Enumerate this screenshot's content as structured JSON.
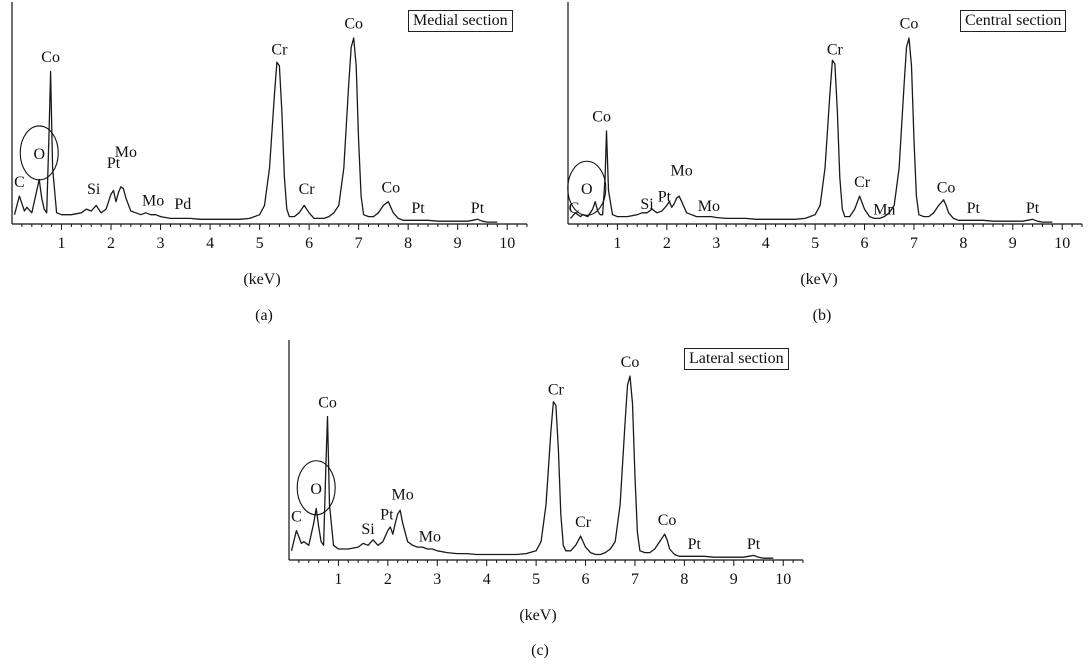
{
  "chart_data": [
    {
      "type": "line",
      "panel": "(a)",
      "title": "Medial section",
      "xlabel": "(keV)",
      "xlim": [
        0,
        10.4
      ],
      "xticks": [
        1,
        2,
        3,
        4,
        5,
        6,
        7,
        8,
        9,
        10
      ],
      "ytick_labels": "none",
      "circled_label": "O",
      "series": [
        {
          "x": [
            0.05,
            0.15,
            0.25,
            0.3,
            0.4,
            0.5,
            0.55,
            0.6,
            0.65,
            0.7,
            0.75,
            0.78,
            0.82,
            0.9,
            1.0,
            1.2,
            1.4,
            1.5,
            1.6,
            1.7,
            1.8,
            1.9,
            2.0,
            2.05,
            2.1,
            2.15,
            2.2,
            2.25,
            2.3,
            2.4,
            2.5,
            2.6,
            2.7,
            2.8,
            2.9,
            3.0,
            3.2,
            3.4,
            3.6,
            3.8,
            4.0,
            4.2,
            4.4,
            4.6,
            4.8,
            5.0,
            5.1,
            5.2,
            5.3,
            5.35,
            5.4,
            5.45,
            5.5,
            5.55,
            5.6,
            5.7,
            5.8,
            5.9,
            6.0,
            6.1,
            6.2,
            6.3,
            6.4,
            6.5,
            6.6,
            6.7,
            6.8,
            6.85,
            6.9,
            6.95,
            7.0,
            7.05,
            7.1,
            7.2,
            7.3,
            7.4,
            7.5,
            7.6,
            7.65,
            7.7,
            7.8,
            7.9,
            8.0,
            8.2,
            8.4,
            8.6,
            8.8,
            9.0,
            9.2,
            9.3,
            9.4,
            9.5,
            9.6,
            9.8
          ],
          "y": [
            0.05,
            0.15,
            0.07,
            0.09,
            0.06,
            0.18,
            0.24,
            0.14,
            0.08,
            0.06,
            0.5,
            0.82,
            0.3,
            0.06,
            0.05,
            0.05,
            0.06,
            0.08,
            0.07,
            0.1,
            0.06,
            0.08,
            0.16,
            0.18,
            0.12,
            0.17,
            0.2,
            0.19,
            0.14,
            0.07,
            0.06,
            0.05,
            0.06,
            0.05,
            0.05,
            0.04,
            0.03,
            0.03,
            0.03,
            0.025,
            0.025,
            0.025,
            0.025,
            0.025,
            0.03,
            0.05,
            0.1,
            0.3,
            0.7,
            0.87,
            0.85,
            0.6,
            0.25,
            0.08,
            0.04,
            0.04,
            0.06,
            0.1,
            0.06,
            0.03,
            0.03,
            0.03,
            0.04,
            0.06,
            0.1,
            0.3,
            0.75,
            0.95,
            1.0,
            0.85,
            0.45,
            0.15,
            0.05,
            0.04,
            0.04,
            0.06,
            0.1,
            0.12,
            0.09,
            0.06,
            0.03,
            0.02,
            0.02,
            0.02,
            0.02,
            0.015,
            0.015,
            0.015,
            0.015,
            0.02,
            0.025,
            0.015,
            0.01,
            0.01
          ]
        }
      ],
      "annotations": [
        {
          "label": "C",
          "x": 0.15,
          "y": 0.2
        },
        {
          "label": "O",
          "x": 0.55,
          "y": 0.35
        },
        {
          "label": "Co",
          "x": 0.78,
          "y": 0.87
        },
        {
          "label": "Si",
          "x": 1.65,
          "y": 0.16
        },
        {
          "label": "Pt",
          "x": 2.05,
          "y": 0.3
        },
        {
          "label": "Mo",
          "x": 2.3,
          "y": 0.36
        },
        {
          "label": "Mo",
          "x": 2.85,
          "y": 0.1
        },
        {
          "label": "Pd",
          "x": 3.45,
          "y": 0.08
        },
        {
          "label": "Cr",
          "x": 5.4,
          "y": 0.91
        },
        {
          "label": "Cr",
          "x": 5.95,
          "y": 0.16
        },
        {
          "label": "Co",
          "x": 6.9,
          "y": 1.05
        },
        {
          "label": "Co",
          "x": 7.65,
          "y": 0.17
        },
        {
          "label": "Pt",
          "x": 8.2,
          "y": 0.06
        },
        {
          "label": "Pt",
          "x": 9.4,
          "y": 0.06
        }
      ]
    },
    {
      "type": "line",
      "panel": "(b)",
      "title": "Central section",
      "xlabel": "(keV)",
      "xlim": [
        0,
        10.4
      ],
      "xticks": [
        1,
        2,
        3,
        4,
        5,
        6,
        7,
        8,
        9,
        10
      ],
      "ytick_labels": "none",
      "circled_label": "O",
      "series": [
        {
          "x": [
            0.05,
            0.15,
            0.25,
            0.3,
            0.4,
            0.5,
            0.55,
            0.6,
            0.65,
            0.7,
            0.75,
            0.78,
            0.82,
            0.9,
            1.0,
            1.2,
            1.4,
            1.5,
            1.6,
            1.7,
            1.8,
            1.9,
            2.0,
            2.05,
            2.1,
            2.15,
            2.2,
            2.25,
            2.3,
            2.4,
            2.5,
            2.6,
            2.7,
            2.8,
            2.9,
            3.0,
            3.2,
            3.4,
            3.6,
            3.8,
            4.0,
            4.2,
            4.4,
            4.6,
            4.8,
            5.0,
            5.1,
            5.2,
            5.3,
            5.35,
            5.4,
            5.45,
            5.5,
            5.55,
            5.6,
            5.7,
            5.8,
            5.9,
            6.0,
            6.1,
            6.2,
            6.3,
            6.4,
            6.5,
            6.6,
            6.7,
            6.8,
            6.85,
            6.9,
            6.95,
            7.0,
            7.05,
            7.1,
            7.2,
            7.3,
            7.4,
            7.5,
            7.6,
            7.65,
            7.7,
            7.8,
            7.9,
            8.0,
            8.2,
            8.4,
            8.6,
            8.8,
            9.0,
            9.2,
            9.3,
            9.4,
            9.5,
            9.6,
            9.8
          ],
          "y": [
            0.03,
            0.06,
            0.04,
            0.05,
            0.04,
            0.08,
            0.12,
            0.07,
            0.05,
            0.05,
            0.25,
            0.5,
            0.18,
            0.05,
            0.04,
            0.04,
            0.05,
            0.06,
            0.06,
            0.08,
            0.06,
            0.07,
            0.1,
            0.12,
            0.09,
            0.11,
            0.14,
            0.15,
            0.12,
            0.06,
            0.05,
            0.04,
            0.04,
            0.04,
            0.04,
            0.035,
            0.03,
            0.03,
            0.03,
            0.025,
            0.025,
            0.025,
            0.025,
            0.025,
            0.03,
            0.05,
            0.1,
            0.3,
            0.7,
            0.88,
            0.86,
            0.6,
            0.25,
            0.08,
            0.04,
            0.04,
            0.08,
            0.15,
            0.08,
            0.04,
            0.03,
            0.03,
            0.04,
            0.06,
            0.1,
            0.3,
            0.75,
            0.95,
            1.0,
            0.85,
            0.45,
            0.15,
            0.05,
            0.04,
            0.04,
            0.06,
            0.1,
            0.13,
            0.1,
            0.06,
            0.03,
            0.02,
            0.02,
            0.02,
            0.02,
            0.015,
            0.015,
            0.015,
            0.015,
            0.02,
            0.025,
            0.015,
            0.01,
            0.01
          ]
        }
      ],
      "annotations": [
        {
          "label": "C",
          "x": 0.12,
          "y": 0.06
        },
        {
          "label": "O",
          "x": 0.38,
          "y": 0.16
        },
        {
          "label": "Co",
          "x": 0.68,
          "y": 0.55
        },
        {
          "label": "Si",
          "x": 1.6,
          "y": 0.08
        },
        {
          "label": "Pt",
          "x": 1.95,
          "y": 0.12
        },
        {
          "label": "Mo",
          "x": 2.3,
          "y": 0.26
        },
        {
          "label": "Mo",
          "x": 2.85,
          "y": 0.07
        },
        {
          "label": "Cr",
          "x": 5.4,
          "y": 0.91
        },
        {
          "label": "Cr",
          "x": 5.95,
          "y": 0.2
        },
        {
          "label": "Mn",
          "x": 6.4,
          "y": 0.05
        },
        {
          "label": "Co",
          "x": 6.9,
          "y": 1.05
        },
        {
          "label": "Co",
          "x": 7.65,
          "y": 0.17
        },
        {
          "label": "Pt",
          "x": 8.2,
          "y": 0.06
        },
        {
          "label": "Pt",
          "x": 9.4,
          "y": 0.06
        }
      ]
    },
    {
      "type": "line",
      "panel": "(c)",
      "title": "Lateral section",
      "xlabel": "(keV)",
      "xlim": [
        0,
        10.4
      ],
      "xticks": [
        1,
        2,
        3,
        4,
        5,
        6,
        7,
        8,
        9,
        10
      ],
      "ytick_labels": "none",
      "circled_label": "O",
      "series": [
        {
          "x": [
            0.05,
            0.15,
            0.25,
            0.3,
            0.4,
            0.5,
            0.55,
            0.6,
            0.65,
            0.7,
            0.75,
            0.78,
            0.82,
            0.9,
            1.0,
            1.2,
            1.4,
            1.5,
            1.6,
            1.7,
            1.8,
            1.9,
            2.0,
            2.05,
            2.1,
            2.15,
            2.2,
            2.25,
            2.3,
            2.4,
            2.5,
            2.6,
            2.7,
            2.8,
            2.9,
            3.0,
            3.2,
            3.4,
            3.6,
            3.8,
            4.0,
            4.2,
            4.4,
            4.6,
            4.8,
            5.0,
            5.1,
            5.2,
            5.3,
            5.35,
            5.4,
            5.45,
            5.5,
            5.55,
            5.6,
            5.7,
            5.8,
            5.9,
            6.0,
            6.1,
            6.2,
            6.3,
            6.4,
            6.5,
            6.6,
            6.7,
            6.8,
            6.85,
            6.9,
            6.95,
            7.0,
            7.05,
            7.1,
            7.2,
            7.3,
            7.4,
            7.5,
            7.6,
            7.65,
            7.7,
            7.8,
            7.9,
            8.0,
            8.2,
            8.4,
            8.6,
            8.8,
            9.0,
            9.2,
            9.3,
            9.4,
            9.5,
            9.6,
            9.8
          ],
          "y": [
            0.05,
            0.16,
            0.09,
            0.1,
            0.08,
            0.2,
            0.28,
            0.18,
            0.1,
            0.08,
            0.55,
            0.78,
            0.3,
            0.08,
            0.06,
            0.06,
            0.07,
            0.09,
            0.08,
            0.11,
            0.08,
            0.1,
            0.16,
            0.18,
            0.14,
            0.2,
            0.25,
            0.27,
            0.2,
            0.1,
            0.08,
            0.07,
            0.07,
            0.06,
            0.06,
            0.05,
            0.04,
            0.035,
            0.035,
            0.03,
            0.03,
            0.03,
            0.03,
            0.03,
            0.035,
            0.05,
            0.1,
            0.3,
            0.7,
            0.86,
            0.84,
            0.6,
            0.25,
            0.08,
            0.05,
            0.05,
            0.08,
            0.13,
            0.07,
            0.04,
            0.03,
            0.03,
            0.04,
            0.06,
            0.1,
            0.3,
            0.75,
            0.95,
            1.0,
            0.85,
            0.45,
            0.15,
            0.05,
            0.04,
            0.04,
            0.06,
            0.1,
            0.14,
            0.11,
            0.06,
            0.03,
            0.02,
            0.02,
            0.02,
            0.02,
            0.015,
            0.015,
            0.015,
            0.015,
            0.02,
            0.025,
            0.015,
            0.01,
            0.01
          ]
        }
      ],
      "annotations": [
        {
          "label": "C",
          "x": 0.15,
          "y": 0.21
        },
        {
          "label": "O",
          "x": 0.55,
          "y": 0.36
        },
        {
          "label": "Co",
          "x": 0.78,
          "y": 0.83
        },
        {
          "label": "Si",
          "x": 1.6,
          "y": 0.14
        },
        {
          "label": "Pt",
          "x": 1.98,
          "y": 0.22
        },
        {
          "label": "Mo",
          "x": 2.3,
          "y": 0.33
        },
        {
          "label": "Mo",
          "x": 2.85,
          "y": 0.1
        },
        {
          "label": "Cr",
          "x": 5.4,
          "y": 0.9
        },
        {
          "label": "Cr",
          "x": 5.95,
          "y": 0.18
        },
        {
          "label": "Co",
          "x": 6.9,
          "y": 1.05
        },
        {
          "label": "Co",
          "x": 7.65,
          "y": 0.19
        },
        {
          "label": "Pt",
          "x": 8.2,
          "y": 0.06
        },
        {
          "label": "Pt",
          "x": 9.4,
          "y": 0.06
        }
      ]
    }
  ],
  "style": {
    "line_color": "#1a1a1a",
    "axis_color": "#111111",
    "background": "#ffffff"
  }
}
